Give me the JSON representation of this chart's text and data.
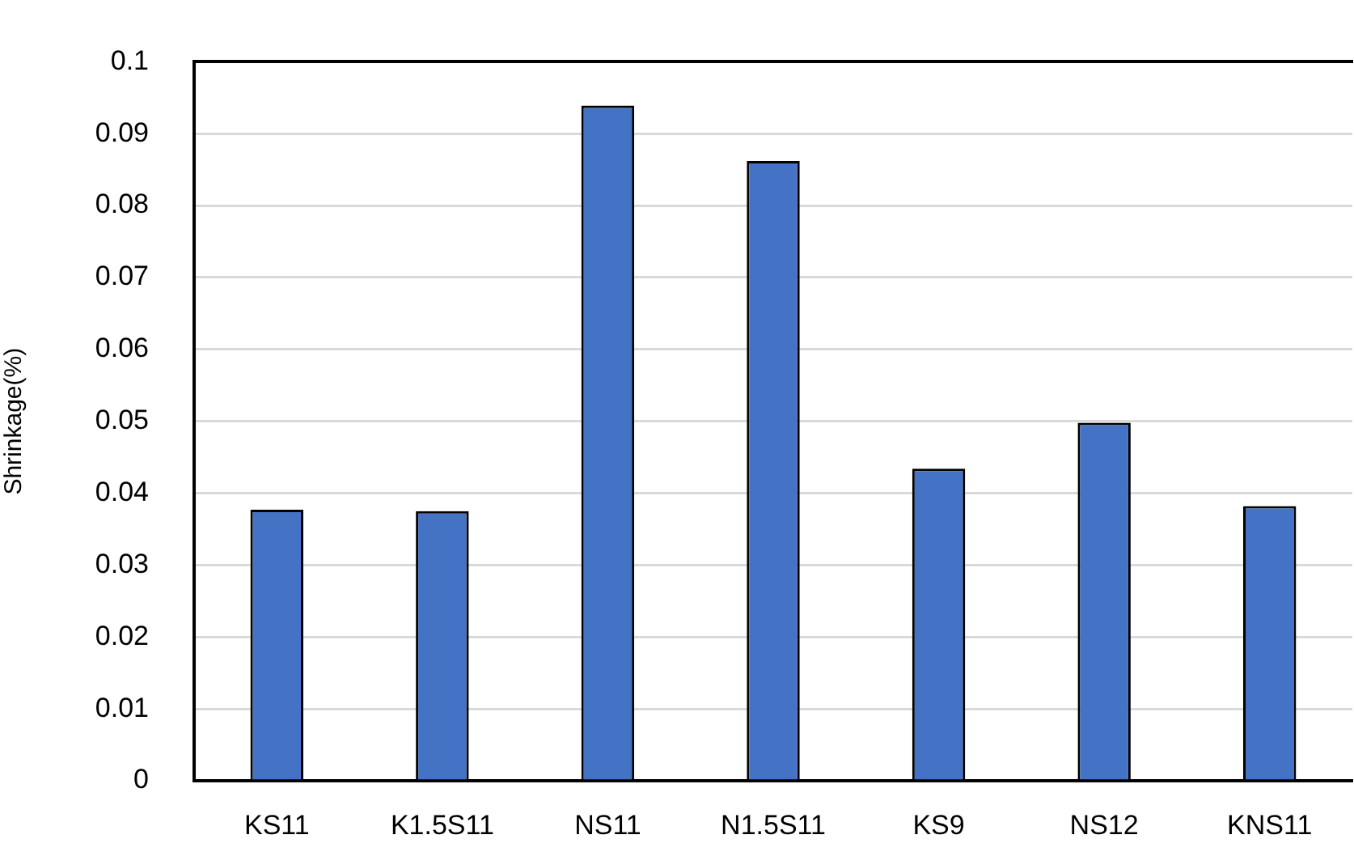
{
  "chart_data": {
    "type": "bar",
    "ylabel": "Shrinkage(%)",
    "categories": [
      "KS11",
      "K1.5S11",
      "NS11",
      "N1.5S11",
      "KS9",
      "NS12",
      "KNS11"
    ],
    "values": [
      0.0377,
      0.0375,
      0.0939,
      0.0862,
      0.0434,
      0.0498,
      0.0382
    ],
    "color": "#4472c4",
    "ylim": [
      0,
      0.1
    ],
    "yticks": [
      0,
      0.01,
      0.02,
      0.03,
      0.04,
      0.05,
      0.06,
      0.07,
      0.08,
      0.09,
      0.1
    ],
    "grid": "y"
  }
}
